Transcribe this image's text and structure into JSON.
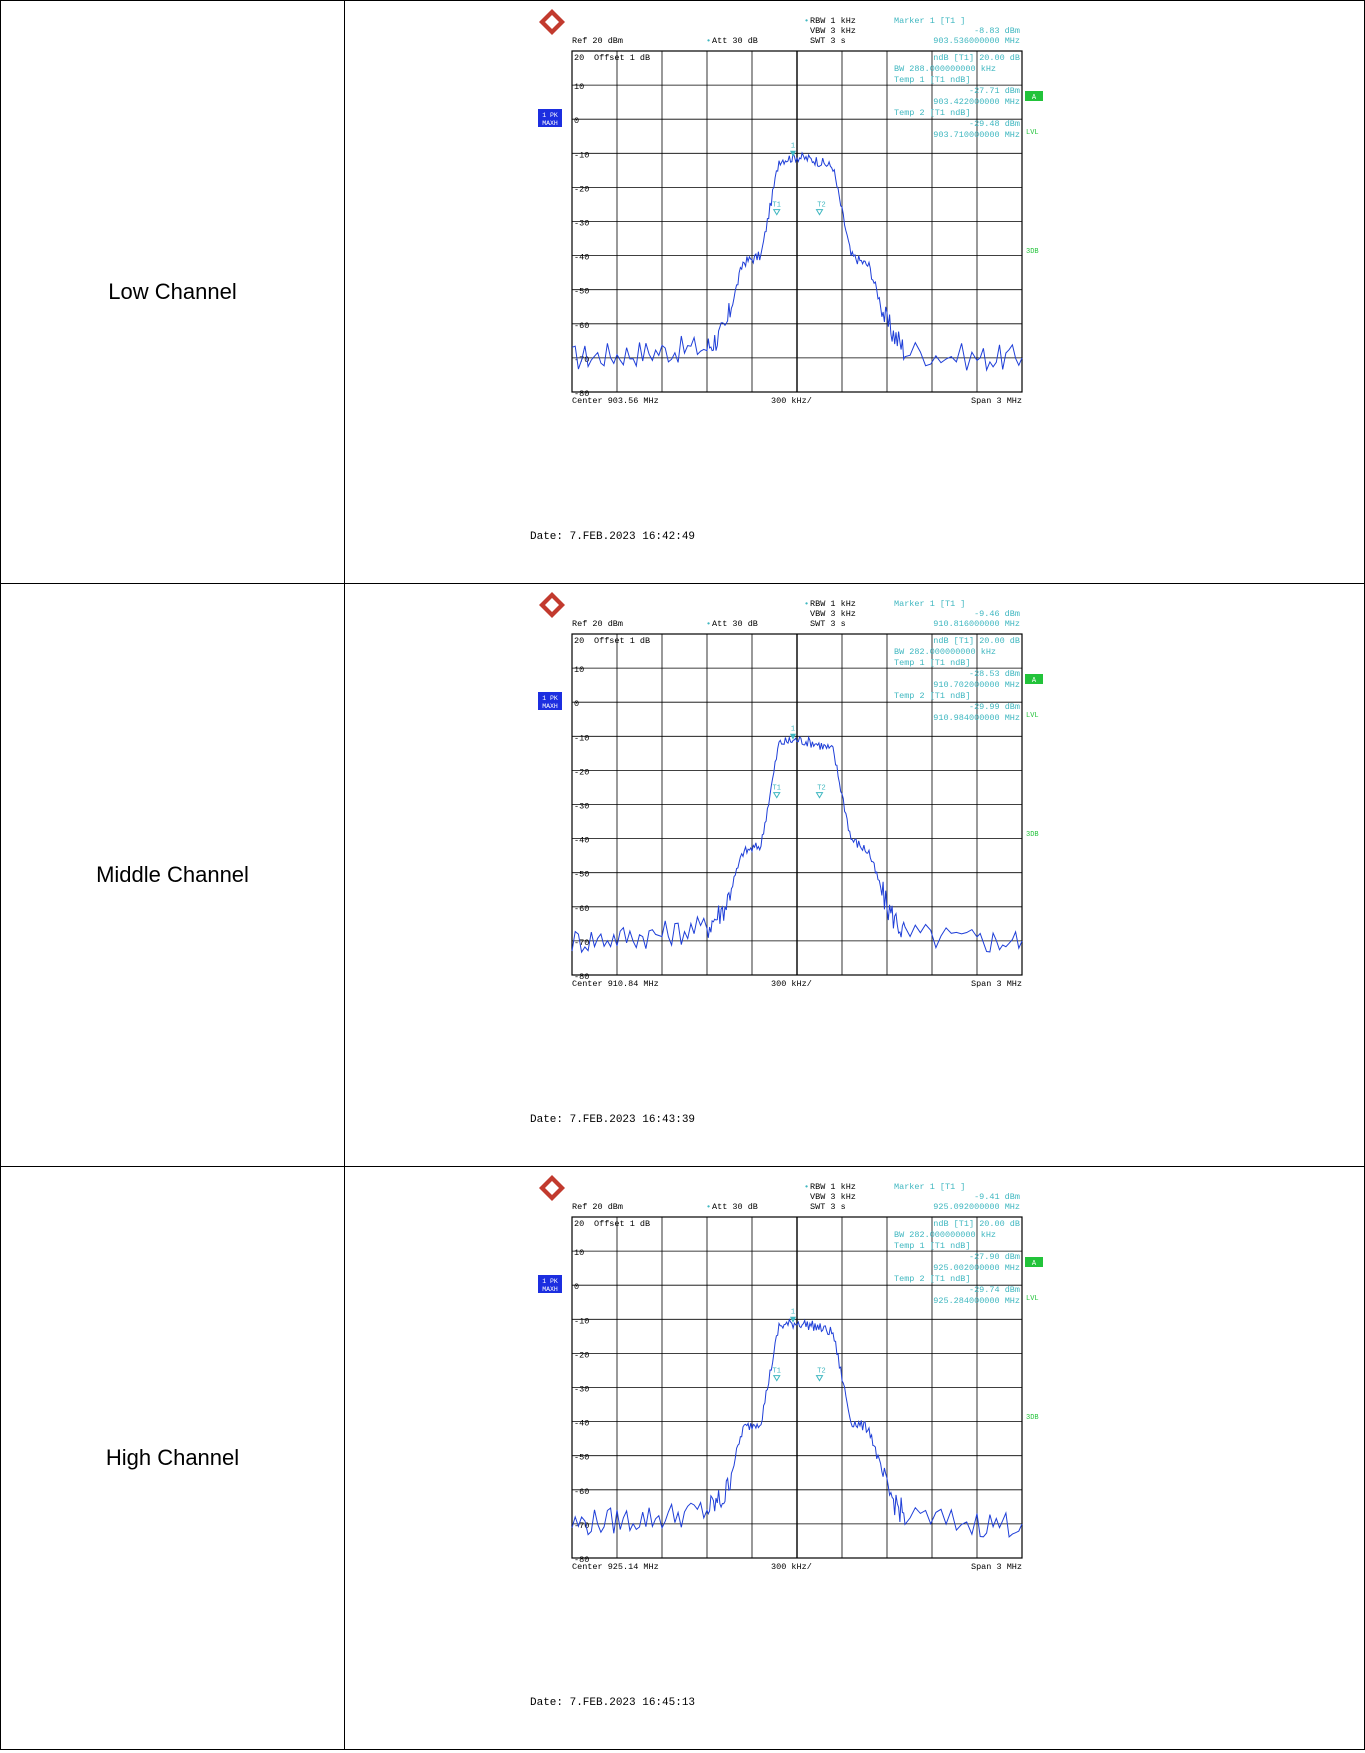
{
  "colors": {
    "grid": "#000000",
    "trace": "#1f3fd8",
    "annot": "#3fb7c0",
    "badge": "#1c2ee0",
    "lvl": "#22c33a",
    "text": "#000000"
  },
  "rows": [
    {
      "label": "Low Channel",
      "header": {
        "rbw": "RBW 1 kHz",
        "vbw": "VBW 3 kHz",
        "swt": "SWT 3 s",
        "ref": "Ref  20 dBm",
        "att": "Att  30 dB"
      },
      "marker": [
        "Marker 1 [T1 ]",
        "-8.83 dBm",
        "903.536000000 MHz"
      ],
      "ndb": [
        "ndB [T1]   20.00 dB",
        "BW 288.000000000 kHz",
        "Temp 1 [T1 ndB]",
        "-27.71 dBm",
        "903.422000000 MHz",
        "Temp 2 [T1 ndB]",
        "-29.48 dBm",
        "903.710000000 MHz"
      ],
      "offset": "Offset  1 dB",
      "footer": {
        "center": "Center 903.56 MHz",
        "div": "300 kHz/",
        "span": "Span 3 MHz"
      },
      "side": {
        "pk": "1 PK",
        "maxh": "MAXH",
        "a": "A",
        "lvl": "LVL",
        "tdb": "3DB"
      },
      "date": "Date: 7.FEB.2023  16:42:49",
      "peak_label": "1",
      "t1": "T1",
      "t2": "T2"
    },
    {
      "label": "Middle Channel",
      "header": {
        "rbw": "RBW 1 kHz",
        "vbw": "VBW 3 kHz",
        "swt": "SWT 3 s",
        "ref": "Ref  20 dBm",
        "att": "Att  30 dB"
      },
      "marker": [
        "Marker 1 [T1 ]",
        "-9.46 dBm",
        "910.816000000 MHz"
      ],
      "ndb": [
        "ndB [T1]   20.00 dB",
        "BW 282.000000000 kHz",
        "Temp 1 [T1 ndB]",
        "-28.53 dBm",
        "910.702000000 MHz",
        "Temp 2 [T1 ndB]",
        "-29.99 dBm",
        "910.984000000 MHz"
      ],
      "offset": "Offset  1 dB",
      "footer": {
        "center": "Center 910.84 MHz",
        "div": "300 kHz/",
        "span": "Span 3 MHz"
      },
      "side": {
        "pk": "1 PK",
        "maxh": "MAXH",
        "a": "A",
        "lvl": "LVL",
        "tdb": "3DB"
      },
      "date": "Date: 7.FEB.2023  16:43:39",
      "peak_label": "1",
      "t1": "T1",
      "t2": "T2"
    },
    {
      "label": "High Channel",
      "header": {
        "rbw": "RBW 1 kHz",
        "vbw": "VBW 3 kHz",
        "swt": "SWT 3 s",
        "ref": "Ref  20 dBm",
        "att": "Att  30 dB"
      },
      "marker": [
        "Marker 1 [T1 ]",
        "-9.41 dBm",
        "925.092000000 MHz"
      ],
      "ndb": [
        "ndB [T1]   20.00 dB",
        "BW 282.000000000 kHz",
        "Temp 1 [T1 ndB]",
        "-27.90 dBm",
        "925.002000000 MHz",
        "Temp 2 [T1 ndB]",
        "-29.74 dBm",
        "925.284000000 MHz"
      ],
      "offset": "Offset  1 dB",
      "footer": {
        "center": "Center 925.14 MHz",
        "div": "300 kHz/",
        "span": "Span 3 MHz"
      },
      "side": {
        "pk": "1 PK",
        "maxh": "MAXH",
        "a": "A",
        "lvl": "LVL",
        "tdb": "3DB"
      },
      "date": "Date: 7.FEB.2023  16:45:13",
      "peak_label": "1",
      "t1": "T1",
      "t2": "T2"
    }
  ],
  "chart_data": [
    {
      "type": "line",
      "ylim": [
        -80,
        20
      ],
      "yticks": [
        "20",
        "10",
        "0",
        "-10",
        "-20",
        "-30",
        "-40",
        "-50",
        "-60",
        "-70",
        "-80"
      ],
      "series": [
        {
          "x": [
            903.06,
            903.16,
            903.26,
            903.36,
            903.4,
            903.44,
            903.48,
            903.52,
            903.56,
            903.6,
            903.64,
            903.68,
            903.72,
            903.76,
            903.8,
            903.96,
            904.06
          ],
          "y": [
            -70,
            -69,
            -68,
            -67,
            -62,
            -42,
            -40,
            -12,
            -11,
            -12,
            -14,
            -40,
            -43,
            -60,
            -68,
            -70,
            -70
          ]
        }
      ]
    },
    {
      "type": "line",
      "ylim": [
        -80,
        20
      ],
      "yticks": [
        "20",
        "10",
        "0",
        "-10",
        "-20",
        "-30",
        "-40",
        "-50",
        "-60",
        "-70",
        "-80"
      ],
      "series": [
        {
          "x": [
            910.34,
            910.44,
            910.54,
            910.64,
            910.68,
            910.72,
            910.76,
            910.8,
            910.84,
            910.88,
            910.92,
            910.96,
            911.0,
            911.04,
            911.08,
            911.24,
            911.34
          ],
          "y": [
            -70,
            -69,
            -68,
            -66,
            -60,
            -44,
            -42,
            -12,
            -11,
            -12,
            -14,
            -40,
            -44,
            -60,
            -68,
            -70,
            -70
          ]
        }
      ]
    },
    {
      "type": "line",
      "ylim": [
        -80,
        20
      ],
      "yticks": [
        "20",
        "10",
        "0",
        "-10",
        "-20",
        "-30",
        "-40",
        "-50",
        "-60",
        "-70",
        "-80"
      ],
      "series": [
        {
          "x": [
            924.64,
            924.74,
            924.84,
            924.94,
            924.98,
            925.02,
            925.06,
            925.1,
            925.14,
            925.18,
            925.22,
            925.26,
            925.3,
            925.34,
            925.38,
            925.54,
            925.64
          ],
          "y": [
            -70,
            -69,
            -68,
            -66,
            -62,
            -42,
            -40,
            -12,
            -11,
            -12,
            -14,
            -40,
            -42,
            -60,
            -68,
            -70,
            -70
          ]
        }
      ]
    }
  ]
}
